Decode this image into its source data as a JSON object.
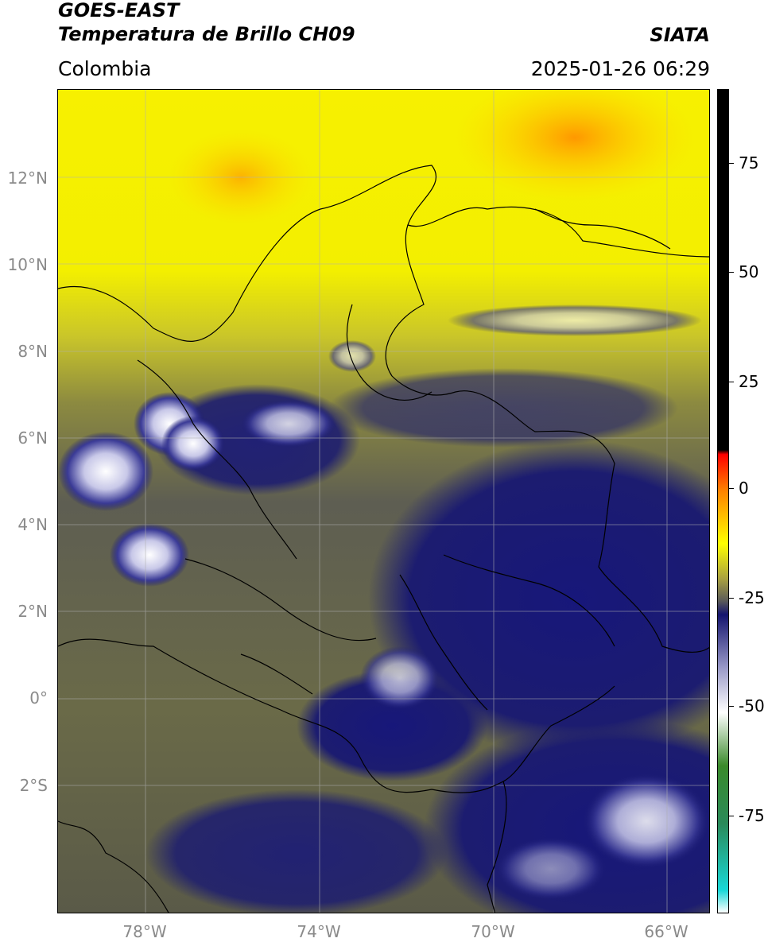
{
  "header": {
    "satellite": "GOES-EAST",
    "product": "Temperatura de Brillo CH09",
    "region": "Colombia",
    "brand": "SIATA",
    "datetime": "2025-01-26 06:29"
  },
  "axes": {
    "lat_labels": [
      "12°N",
      "10°N",
      "8°N",
      "6°N",
      "4°N",
      "2°N",
      "0°",
      "2°S"
    ],
    "lon_labels": [
      "78°W",
      "74°W",
      "70°W",
      "66°W"
    ]
  },
  "colorbar": {
    "labels": [
      "75",
      "50",
      "25",
      "0",
      "-25",
      "-50",
      "-75"
    ],
    "stops": [
      {
        "color": "#ffffff",
        "value": -95
      },
      {
        "color": "#18d8d8",
        "value": -90
      },
      {
        "color": "#2a8a5a",
        "value": -75
      },
      {
        "color": "#3a8a2a",
        "value": -62
      },
      {
        "color": "#ffffff",
        "value": -50
      },
      {
        "color": "#9a9ac8",
        "value": -40
      },
      {
        "color": "#14146e",
        "value": -28
      },
      {
        "color": "#5a5a5a",
        "value": -25
      },
      {
        "color": "#a8a040",
        "value": -20
      },
      {
        "color": "#ffff00",
        "value": -12
      },
      {
        "color": "#ff8000",
        "value": 0
      },
      {
        "color": "#ff0000",
        "value": 8
      },
      {
        "color": "#000000",
        "value": 9
      },
      {
        "color": "#000000",
        "value": 90
      }
    ]
  },
  "colors": {
    "warm": "#ffff00",
    "hot": "#ff9000",
    "mid": "#a8a040",
    "gray": "#5a5a58",
    "cold": "#1a1a72",
    "coldest": "#ffffff"
  }
}
